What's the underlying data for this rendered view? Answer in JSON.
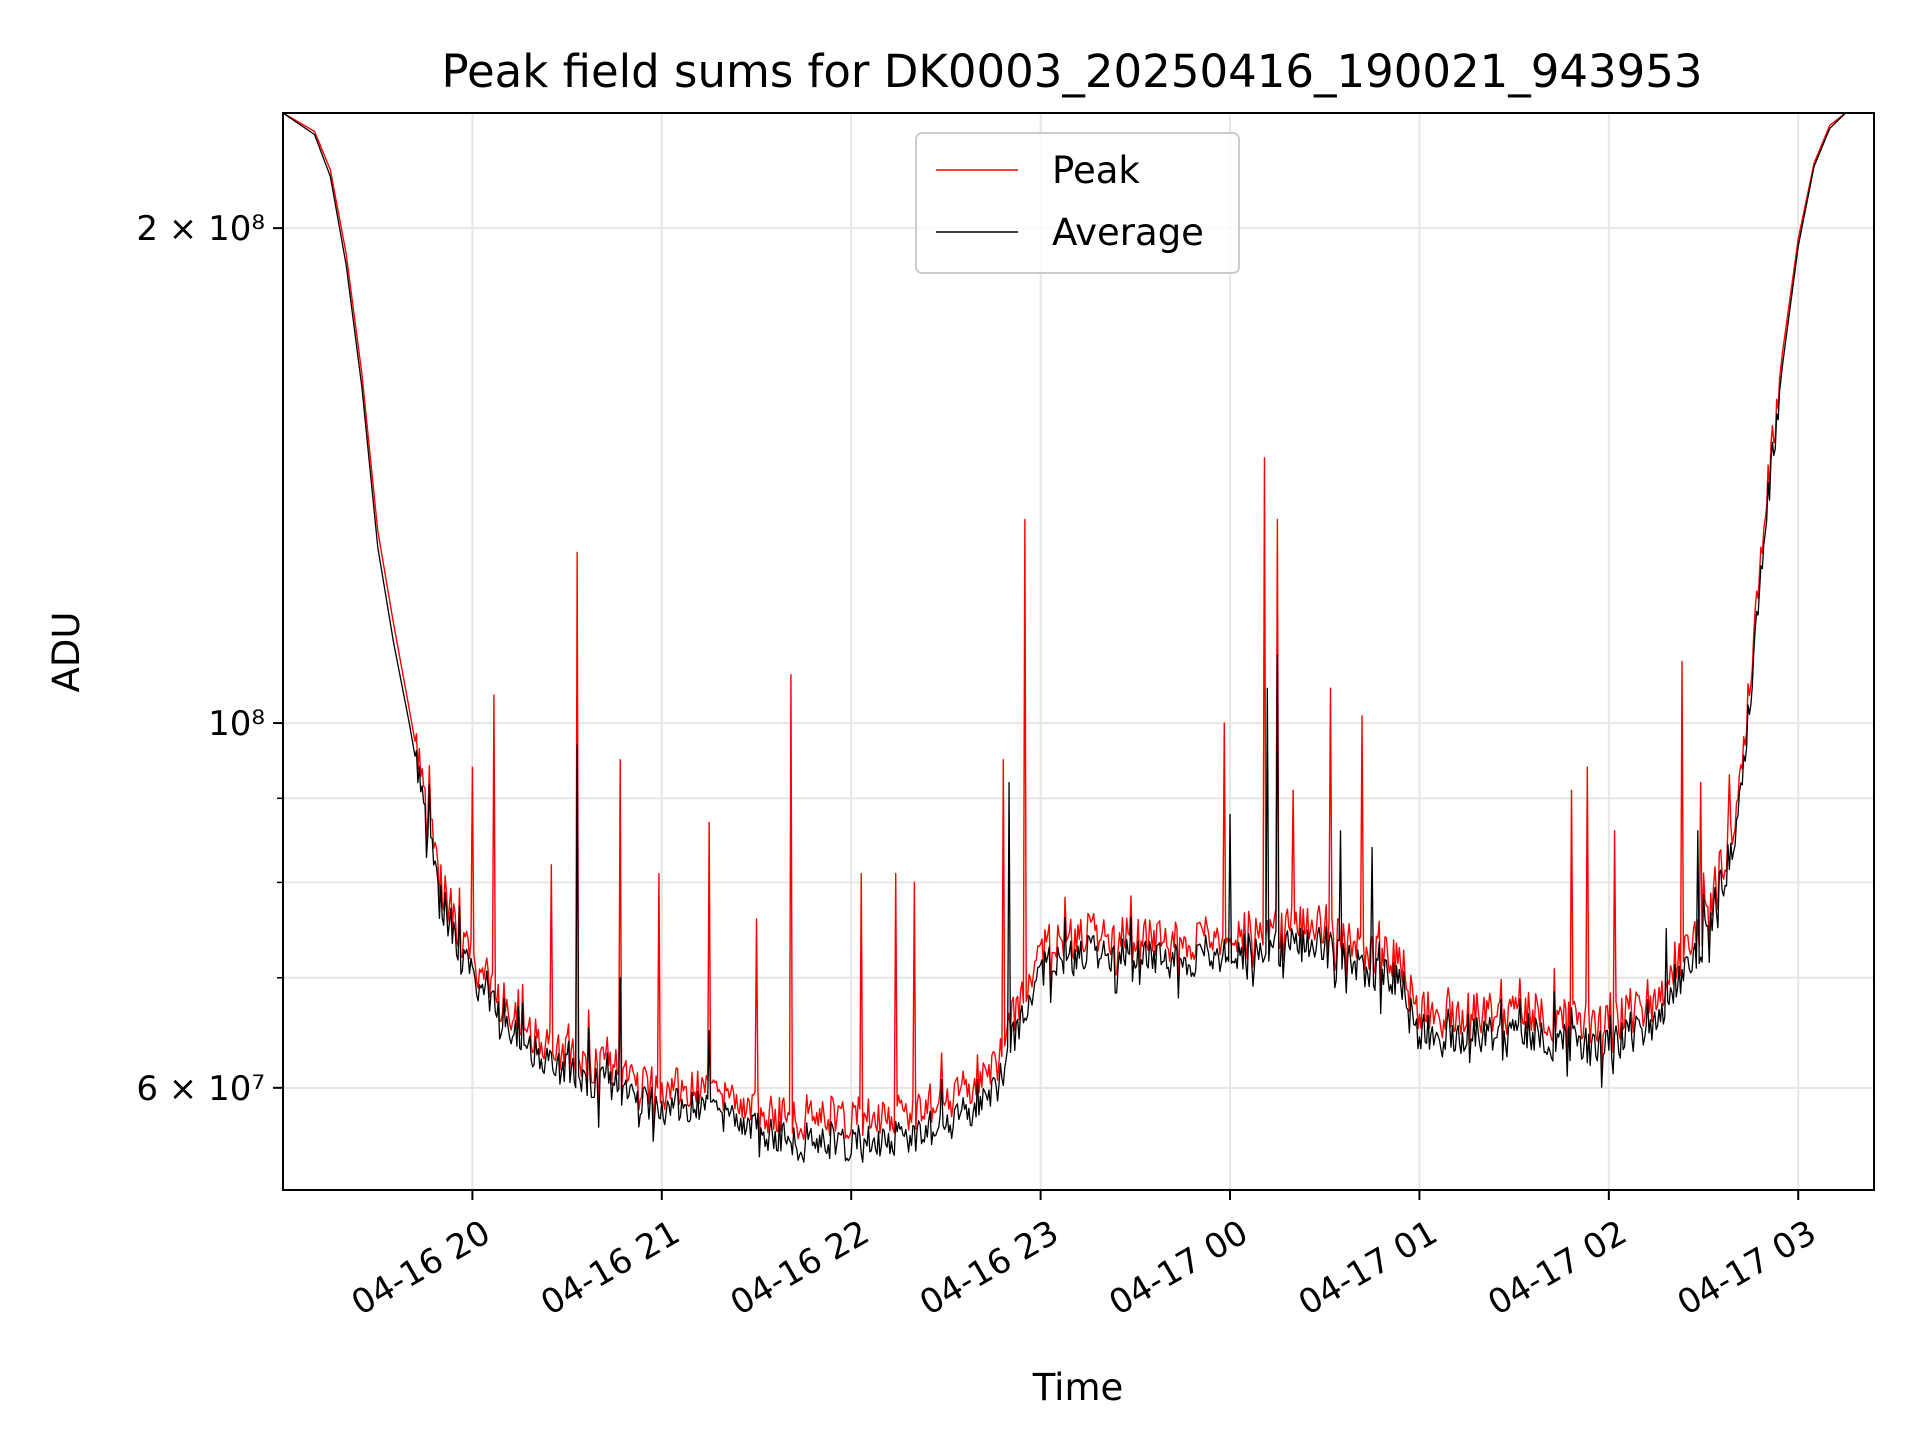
{
  "chart_data": {
    "type": "line",
    "title": "Peak field sums for DK0003_20250416_190021_943953",
    "xlabel": "Time",
    "ylabel": "ADU",
    "y_scale": "log",
    "xlim": [
      "2025-04-16 19:00",
      "2025-04-17 03:24"
    ],
    "ylim": [
      52000000,
      235000000
    ],
    "grid": true,
    "legend_position": "top-center",
    "x_ticks": [
      {
        "value": "2025-04-16 20:00",
        "label": "04-16 20"
      },
      {
        "value": "2025-04-16 21:00",
        "label": "04-16 21"
      },
      {
        "value": "2025-04-16 22:00",
        "label": "04-16 22"
      },
      {
        "value": "2025-04-16 23:00",
        "label": "04-16 23"
      },
      {
        "value": "2025-04-17 00:00",
        "label": "04-17 00"
      },
      {
        "value": "2025-04-17 01:00",
        "label": "04-17 01"
      },
      {
        "value": "2025-04-17 02:00",
        "label": "04-17 02"
      },
      {
        "value": "2025-04-17 03:00",
        "label": "04-17 03"
      }
    ],
    "y_ticks_major": [
      {
        "value": 60000000,
        "label": "6 × 10⁷"
      },
      {
        "value": 100000000,
        "label": "10⁸"
      },
      {
        "value": 200000000,
        "label": "2 × 10⁸"
      }
    ],
    "y_ticks_minor": [
      70000000,
      80000000,
      90000000
    ],
    "series": [
      {
        "name": "Average",
        "color": "#000000",
        "points": [
          [
            "2025-04-16 19:00",
            235000000
          ],
          [
            "2025-04-16 19:10",
            228000000
          ],
          [
            "2025-04-16 19:15",
            215000000
          ],
          [
            "2025-04-16 19:20",
            190000000
          ],
          [
            "2025-04-16 19:25",
            160000000
          ],
          [
            "2025-04-16 19:30",
            128000000
          ],
          [
            "2025-04-16 19:35",
            112000000
          ],
          [
            "2025-04-16 19:40",
            100000000
          ],
          [
            "2025-04-16 19:45",
            88000000
          ],
          [
            "2025-04-16 19:50",
            78000000
          ],
          [
            "2025-04-16 20:00",
            70000000
          ],
          [
            "2025-04-16 20:10",
            66000000
          ],
          [
            "2025-04-16 20:20",
            63000000
          ],
          [
            "2025-04-16 20:30",
            61500000
          ],
          [
            "2025-04-16 20:45",
            60000000
          ],
          [
            "2025-04-16 21:00",
            58500000
          ],
          [
            "2025-04-16 21:15",
            58500000
          ],
          [
            "2025-04-16 21:30",
            56500000
          ],
          [
            "2025-04-16 21:45",
            55500000
          ],
          [
            "2025-04-16 22:00",
            55500000
          ],
          [
            "2025-04-16 22:15",
            56000000
          ],
          [
            "2025-04-16 22:30",
            57000000
          ],
          [
            "2025-04-16 22:45",
            59500000
          ],
          [
            "2025-04-16 23:00",
            71000000
          ],
          [
            "2025-04-16 23:15",
            72500000
          ],
          [
            "2025-04-16 23:30",
            72500000
          ],
          [
            "2025-04-16 23:45",
            71500000
          ],
          [
            "2025-04-17 00:00",
            72500000
          ],
          [
            "2025-04-17 00:15",
            73000000
          ],
          [
            "2025-04-17 00:30",
            73500000
          ],
          [
            "2025-04-17 00:45",
            70500000
          ],
          [
            "2025-04-17 00:55",
            69500000
          ],
          [
            "2025-04-17 01:00",
            64000000
          ],
          [
            "2025-04-17 01:15",
            64500000
          ],
          [
            "2025-04-17 01:30",
            65000000
          ],
          [
            "2025-04-17 01:45",
            64000000
          ],
          [
            "2025-04-17 02:00",
            63500000
          ],
          [
            "2025-04-17 02:15",
            66000000
          ],
          [
            "2025-04-17 02:30",
            73500000
          ],
          [
            "2025-04-17 02:40",
            85000000
          ],
          [
            "2025-04-17 02:45",
            105000000
          ],
          [
            "2025-04-17 02:50",
            135000000
          ],
          [
            "2025-04-17 02:55",
            165000000
          ],
          [
            "2025-04-17 03:00",
            195000000
          ],
          [
            "2025-04-17 03:05",
            218000000
          ],
          [
            "2025-04-17 03:10",
            230000000
          ],
          [
            "2025-04-17 03:15",
            235000000
          ],
          [
            "2025-04-17 03:24",
            235000000
          ]
        ],
        "spikes": [
          [
            "2025-04-16 20:10",
            68000000
          ],
          [
            "2025-04-16 20:33",
            97000000
          ],
          [
            "2025-04-16 20:47",
            70000000
          ],
          [
            "2025-04-16 21:15",
            65000000
          ],
          [
            "2025-04-16 22:50",
            92000000
          ],
          [
            "2025-04-17 00:00",
            88000000
          ],
          [
            "2025-04-17 00:12",
            105000000
          ],
          [
            "2025-04-17 00:15",
            110000000
          ],
          [
            "2025-04-17 00:35",
            86000000
          ],
          [
            "2025-04-17 00:45",
            84000000
          ],
          [
            "2025-04-17 02:18",
            75000000
          ],
          [
            "2025-04-17 02:28",
            86000000
          ]
        ]
      },
      {
        "name": "Peak",
        "color": "#ff0000",
        "points": [
          [
            "2025-04-16 19:00",
            235000000
          ],
          [
            "2025-04-16 19:10",
            229000000
          ],
          [
            "2025-04-16 19:15",
            217000000
          ],
          [
            "2025-04-16 19:20",
            193000000
          ],
          [
            "2025-04-16 19:25",
            163000000
          ],
          [
            "2025-04-16 19:30",
            131000000
          ],
          [
            "2025-04-16 19:35",
            115000000
          ],
          [
            "2025-04-16 19:40",
            102000000
          ],
          [
            "2025-04-16 19:45",
            90000000
          ],
          [
            "2025-04-16 19:50",
            80000000
          ],
          [
            "2025-04-16 20:00",
            71500000
          ],
          [
            "2025-04-16 20:10",
            67500000
          ],
          [
            "2025-04-16 20:20",
            64500000
          ],
          [
            "2025-04-16 20:30",
            63000000
          ],
          [
            "2025-04-16 20:45",
            61500000
          ],
          [
            "2025-04-16 21:00",
            60000000
          ],
          [
            "2025-04-16 21:15",
            60000000
          ],
          [
            "2025-04-16 21:30",
            58000000
          ],
          [
            "2025-04-16 21:45",
            57500000
          ],
          [
            "2025-04-16 22:00",
            57500000
          ],
          [
            "2025-04-16 22:15",
            58000000
          ],
          [
            "2025-04-16 22:30",
            59000000
          ],
          [
            "2025-04-16 22:45",
            61500000
          ],
          [
            "2025-04-16 23:00",
            73000000
          ],
          [
            "2025-04-16 23:15",
            74500000
          ],
          [
            "2025-04-16 23:30",
            74500000
          ],
          [
            "2025-04-16 23:45",
            73500000
          ],
          [
            "2025-04-17 00:00",
            74500000
          ],
          [
            "2025-04-17 00:15",
            75000000
          ],
          [
            "2025-04-17 00:30",
            75500000
          ],
          [
            "2025-04-17 00:45",
            72500000
          ],
          [
            "2025-04-17 00:55",
            71500000
          ],
          [
            "2025-04-17 01:00",
            66000000
          ],
          [
            "2025-04-17 01:15",
            66500000
          ],
          [
            "2025-04-17 01:30",
            67000000
          ],
          [
            "2025-04-17 01:45",
            66000000
          ],
          [
            "2025-04-17 02:00",
            65500000
          ],
          [
            "2025-04-17 02:15",
            68000000
          ],
          [
            "2025-04-17 02:30",
            75500000
          ],
          [
            "2025-04-17 02:40",
            87000000
          ],
          [
            "2025-04-17 02:45",
            108000000
          ],
          [
            "2025-04-17 02:50",
            138000000
          ],
          [
            "2025-04-17 02:55",
            168000000
          ],
          [
            "2025-04-17 03:00",
            197000000
          ],
          [
            "2025-04-17 03:05",
            219000000
          ],
          [
            "2025-04-17 03:10",
            231000000
          ],
          [
            "2025-04-17 03:15",
            235000000
          ],
          [
            "2025-04-17 03:24",
            235000000
          ]
        ],
        "spikes": [
          [
            "2025-04-16 20:00",
            94000000
          ],
          [
            "2025-04-16 20:07",
            104000000
          ],
          [
            "2025-04-16 20:25",
            82000000
          ],
          [
            "2025-04-16 20:33",
            127000000
          ],
          [
            "2025-04-16 20:47",
            95000000
          ],
          [
            "2025-04-16 20:59",
            81000000
          ],
          [
            "2025-04-16 21:15",
            87000000
          ],
          [
            "2025-04-16 21:30",
            76000000
          ],
          [
            "2025-04-16 21:41",
            107000000
          ],
          [
            "2025-04-16 22:03",
            81000000
          ],
          [
            "2025-04-16 22:14",
            81000000
          ],
          [
            "2025-04-16 22:20",
            80000000
          ],
          [
            "2025-04-16 22:48",
            95000000
          ],
          [
            "2025-04-16 22:55",
            133000000
          ],
          [
            "2025-04-16 23:58",
            100000000
          ],
          [
            "2025-04-17 00:11",
            145000000
          ],
          [
            "2025-04-17 00:15",
            133000000
          ],
          [
            "2025-04-17 00:20",
            91000000
          ],
          [
            "2025-04-17 00:32",
            105000000
          ],
          [
            "2025-04-17 00:42",
            101000000
          ],
          [
            "2025-04-17 01:48",
            91000000
          ],
          [
            "2025-04-17 01:53",
            94000000
          ],
          [
            "2025-04-17 02:02",
            86000000
          ],
          [
            "2025-04-17 02:23",
            109000000
          ],
          [
            "2025-04-17 02:29",
            92000000
          ],
          [
            "2025-04-17 02:38",
            93000000
          ]
        ]
      }
    ]
  }
}
